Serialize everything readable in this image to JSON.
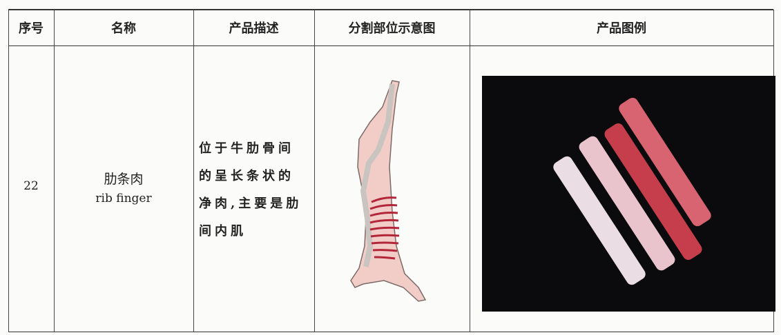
{
  "table": {
    "header": [
      "序号",
      "名称",
      "产品描述",
      "分割部位示意图",
      "产品图例"
    ],
    "rows": [
      {
        "number": 22,
        "name": "肋条肉",
        "name_en": "rib finger",
        "description": [
          "位于牛肋骨间",
          "的呈长条状的",
          "净肉,主要是肋",
          "间内肌"
        ]
      }
    ]
  }
}
